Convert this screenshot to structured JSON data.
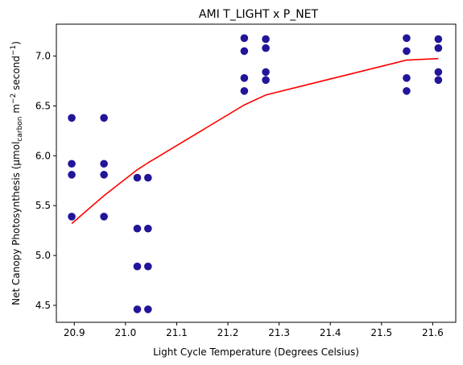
{
  "chart_data": {
    "type": "scatter",
    "title": "AMI T_LIGHT x P_NET",
    "xlabel": "Light Cycle Temperature (Degrees Celsius)",
    "ylabel_parts": {
      "main": "Net Canopy Photosynthesis (µmol",
      "sub": "carbon",
      "mid": " m",
      "sup1": "−2",
      "mid2": " second",
      "sup2": "−1",
      "end": ")"
    },
    "xlim": [
      20.865,
      21.645
    ],
    "ylim": [
      4.33,
      7.32
    ],
    "xticks": [
      20.9,
      21.0,
      21.1,
      21.2,
      21.3,
      21.4,
      21.5,
      21.6
    ],
    "xtick_labels": [
      "20.9",
      "21.0",
      "21.1",
      "21.2",
      "21.3",
      "21.4",
      "21.5",
      "21.6"
    ],
    "yticks": [
      4.5,
      5.0,
      5.5,
      6.0,
      6.5,
      7.0
    ],
    "ytick_labels": [
      "4.5",
      "5.0",
      "5.5",
      "6.0",
      "6.5",
      "7.0"
    ],
    "grid": false,
    "series": [
      {
        "kind": "points",
        "color": "#221599",
        "points": [
          [
            20.895,
            6.38
          ],
          [
            20.895,
            5.92
          ],
          [
            20.895,
            5.81
          ],
          [
            20.895,
            5.39
          ],
          [
            20.958,
            6.38
          ],
          [
            20.958,
            5.92
          ],
          [
            20.958,
            5.81
          ],
          [
            20.958,
            5.39
          ],
          [
            21.023,
            5.78
          ],
          [
            21.023,
            5.27
          ],
          [
            21.023,
            4.89
          ],
          [
            21.023,
            4.46
          ],
          [
            21.044,
            5.78
          ],
          [
            21.044,
            5.27
          ],
          [
            21.044,
            4.89
          ],
          [
            21.044,
            4.46
          ],
          [
            21.232,
            7.18
          ],
          [
            21.232,
            7.05
          ],
          [
            21.232,
            6.78
          ],
          [
            21.232,
            6.65
          ],
          [
            21.274,
            7.17
          ],
          [
            21.274,
            7.08
          ],
          [
            21.274,
            6.84
          ],
          [
            21.274,
            6.76
          ],
          [
            21.549,
            7.18
          ],
          [
            21.549,
            7.05
          ],
          [
            21.549,
            6.78
          ],
          [
            21.549,
            6.65
          ],
          [
            21.611,
            7.17
          ],
          [
            21.611,
            7.08
          ],
          [
            21.611,
            6.84
          ],
          [
            21.611,
            6.76
          ]
        ]
      },
      {
        "kind": "line",
        "color": "#ff0000",
        "points": [
          [
            20.895,
            5.32
          ],
          [
            20.958,
            5.6
          ],
          [
            21.023,
            5.86
          ],
          [
            21.044,
            5.93
          ],
          [
            21.232,
            6.51
          ],
          [
            21.274,
            6.61
          ],
          [
            21.549,
            6.96
          ],
          [
            21.611,
            6.975
          ]
        ]
      }
    ]
  }
}
